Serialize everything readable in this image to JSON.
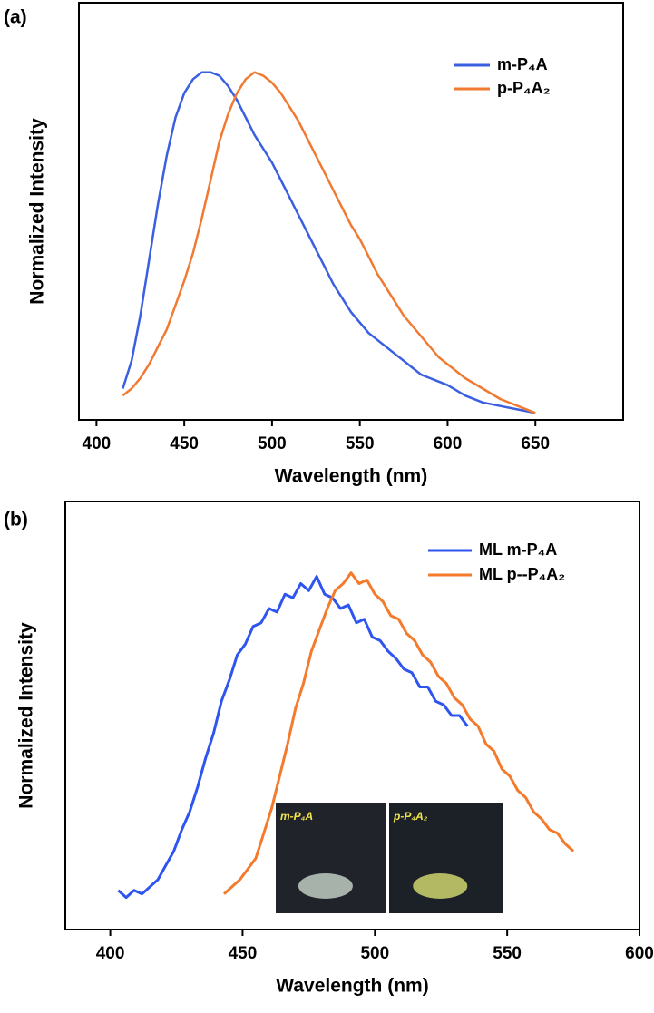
{
  "chart_data": [
    {
      "type": "line",
      "label": "(a)",
      "xlabel": "Wavelength (nm)",
      "ylabel": "Normalized Intensity",
      "xlim": [
        390,
        700
      ],
      "ylim": [
        0,
        1.2
      ],
      "xticks": [
        400,
        450,
        500,
        550,
        600,
        650
      ],
      "x": [
        415,
        420,
        425,
        430,
        435,
        440,
        445,
        450,
        455,
        460,
        465,
        470,
        475,
        480,
        485,
        490,
        495,
        500,
        505,
        510,
        515,
        520,
        525,
        530,
        535,
        540,
        545,
        550,
        555,
        560,
        565,
        570,
        575,
        580,
        585,
        590,
        595,
        600,
        610,
        620,
        630,
        640,
        650
      ],
      "series": [
        {
          "name": "m-P₄A",
          "color": "#3a5fe0",
          "values": [
            0.09,
            0.17,
            0.3,
            0.46,
            0.62,
            0.76,
            0.87,
            0.94,
            0.98,
            1.0,
            1.0,
            0.99,
            0.96,
            0.92,
            0.87,
            0.82,
            0.78,
            0.74,
            0.69,
            0.64,
            0.59,
            0.54,
            0.49,
            0.44,
            0.39,
            0.35,
            0.31,
            0.28,
            0.25,
            0.23,
            0.21,
            0.19,
            0.17,
            0.15,
            0.13,
            0.12,
            0.11,
            0.1,
            0.07,
            0.05,
            0.04,
            0.03,
            0.02
          ]
        },
        {
          "name": "p-P₄A₂",
          "color": "#f07a32",
          "values": [
            0.07,
            0.09,
            0.12,
            0.16,
            0.21,
            0.26,
            0.33,
            0.4,
            0.48,
            0.58,
            0.69,
            0.8,
            0.88,
            0.94,
            0.98,
            1.0,
            0.99,
            0.97,
            0.94,
            0.9,
            0.86,
            0.81,
            0.76,
            0.71,
            0.66,
            0.61,
            0.56,
            0.52,
            0.47,
            0.42,
            0.38,
            0.34,
            0.3,
            0.27,
            0.24,
            0.21,
            0.18,
            0.16,
            0.12,
            0.09,
            0.06,
            0.04,
            0.02
          ]
        }
      ]
    },
    {
      "type": "line",
      "label": "(b)",
      "xlabel": "Wavelength (nm)",
      "ylabel": "Normalized Intensity",
      "xlim": [
        383,
        600
      ],
      "ylim": [
        0,
        1.2
      ],
      "xticks": [
        400,
        450,
        500,
        550,
        600
      ],
      "annotations": [
        "m-P₄A",
        "p-P₄A₂"
      ],
      "series": [
        {
          "name": "ML m-P₄A",
          "color": "#2f55f0",
          "x": [
            403,
            406,
            409,
            412,
            415,
            418,
            421,
            424,
            427,
            430,
            433,
            436,
            439,
            442,
            445,
            448,
            451,
            454,
            457,
            460,
            463,
            466,
            469,
            472,
            475,
            478,
            481,
            484,
            487,
            490,
            493,
            496,
            499,
            502,
            505,
            508,
            511,
            514,
            517,
            520,
            523,
            526,
            529,
            532,
            535
          ],
          "values": [
            0.11,
            0.09,
            0.11,
            0.1,
            0.12,
            0.14,
            0.18,
            0.22,
            0.28,
            0.33,
            0.4,
            0.48,
            0.55,
            0.64,
            0.7,
            0.77,
            0.8,
            0.85,
            0.86,
            0.9,
            0.89,
            0.94,
            0.93,
            0.97,
            0.95,
            0.99,
            0.94,
            0.93,
            0.9,
            0.91,
            0.86,
            0.87,
            0.82,
            0.81,
            0.78,
            0.76,
            0.73,
            0.72,
            0.68,
            0.68,
            0.64,
            0.63,
            0.6,
            0.6,
            0.57
          ]
        },
        {
          "name": "ML p--P₄A₂",
          "color": "#f47a2c",
          "x": [
            443,
            446,
            449,
            452,
            455,
            458,
            461,
            464,
            467,
            470,
            473,
            476,
            479,
            482,
            485,
            488,
            491,
            494,
            497,
            500,
            503,
            506,
            509,
            512,
            515,
            518,
            521,
            524,
            527,
            530,
            533,
            536,
            539,
            542,
            545,
            548,
            551,
            554,
            557,
            560,
            563,
            566,
            569,
            572,
            575
          ],
          "values": [
            0.1,
            0.12,
            0.14,
            0.17,
            0.2,
            0.27,
            0.34,
            0.43,
            0.52,
            0.62,
            0.69,
            0.78,
            0.84,
            0.9,
            0.95,
            0.97,
            1.0,
            0.97,
            0.98,
            0.94,
            0.92,
            0.88,
            0.87,
            0.83,
            0.81,
            0.77,
            0.75,
            0.71,
            0.69,
            0.65,
            0.63,
            0.59,
            0.57,
            0.52,
            0.5,
            0.45,
            0.43,
            0.39,
            0.37,
            0.33,
            0.31,
            0.28,
            0.27,
            0.24,
            0.22
          ]
        }
      ]
    }
  ]
}
